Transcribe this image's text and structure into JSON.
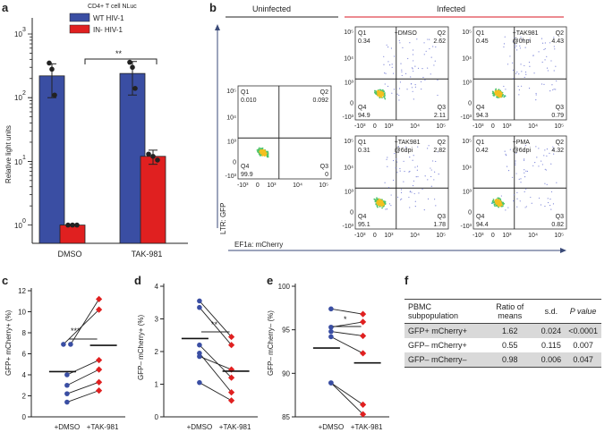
{
  "panels": {
    "a": "a",
    "b": "b",
    "c": "c",
    "d": "d",
    "e": "e",
    "f": "f"
  },
  "panel_a": {
    "title": "CD4+ T cell NLuc",
    "ylabel": "Relative light units",
    "significance": "**",
    "yticks": [
      "10",
      "10",
      "10",
      "10"
    ],
    "yexps": [
      "0",
      "1",
      "2",
      "3"
    ],
    "legend": [
      {
        "name": "WT HIV-1",
        "color": "#3a4ea3"
      },
      {
        "name": "IN- HIV-1",
        "color": "#e02020"
      }
    ]
  },
  "panel_b": {
    "header_left": "Uninfected",
    "header_right": "Infected",
    "header_right_color": "#e0454f",
    "ylabel": "LTR: GFP",
    "xlabel": "EF1a: mCherry",
    "tick_labels": {
      "x": [
        "-10³",
        "0",
        "10³",
        "10⁴",
        "10⁵"
      ],
      "y": [
        "-10³",
        "0",
        "10³",
        "10⁴",
        "10⁵"
      ]
    },
    "plots": [
      {
        "label": "",
        "q1": "0.010",
        "q2": "0.092",
        "q3": "0",
        "q4": "99.9"
      },
      {
        "label": "+DMSO",
        "q1": "0.34",
        "q2": "2.62",
        "q3": "2.11",
        "q4": "94.9"
      },
      {
        "label": "+TAK981\n@0hpi",
        "q1": "0.45",
        "q2": "4.43",
        "q3": "0.79",
        "q4": "94.3"
      },
      {
        "label": "+TAK981\n@6dpi",
        "q1": "0.31",
        "q2": "2.82",
        "q3": "1.78",
        "q4": "95.1"
      },
      {
        "label": "+PMA\n@6dpi",
        "q1": "0.42",
        "q2": "4.32",
        "q3": "0.82",
        "q4": "94.4"
      }
    ],
    "quadrant_names": [
      "Q1",
      "Q2",
      "Q3",
      "Q4"
    ]
  },
  "panel_c": {
    "ylabel": "GFP+ mCherry+ (%)",
    "significance": "***"
  },
  "panel_d": {
    "ylabel": "GFP– mCherry+ (%)",
    "significance": "**"
  },
  "panel_e": {
    "ylabel": "GFP– mCherry– (%)",
    "significance": "*"
  },
  "table": {
    "headers": [
      "PBMC subpopulation",
      "Ratio of means",
      "s.d.",
      "P value"
    ],
    "rows": [
      [
        "GFP+ mCherry+",
        "1.62",
        "0.024",
        "<0.0001"
      ],
      [
        "GFP– mCherry+",
        "0.55",
        "0.115",
        "0.007"
      ],
      [
        "GFP– mCherry–",
        "0.98",
        "0.006",
        "0.047"
      ]
    ]
  },
  "chart_data": [
    {
      "type": "bar",
      "panel": "a",
      "title": "CD4+ T cell NLuc",
      "categories": [
        "DMSO",
        "TAK-981"
      ],
      "series": [
        {
          "name": "WT HIV-1",
          "values": [
            220,
            240
          ],
          "sd": [
            120,
            130
          ],
          "points": [
            [
              350,
              280,
              110
            ],
            [
              360,
              300,
              140
            ]
          ]
        },
        {
          "name": "IN- HIV-1",
          "values": [
            1.0,
            12
          ],
          "sd": [
            0.02,
            3
          ],
          "points": [
            [
              1.0,
              1.0,
              1.0
            ],
            [
              13,
              12,
              10.5
            ]
          ]
        }
      ],
      "yscale": "log",
      "ylim": [
        0.5,
        1000
      ],
      "xlabel": "",
      "ylabel": "Relative light units"
    },
    {
      "type": "scatter",
      "panel": "c",
      "categories": [
        "+DMSO",
        "+TAK-981"
      ],
      "pairs": [
        [
          6.9,
          11.2
        ],
        [
          6.9,
          10.2
        ],
        [
          4.0,
          5.4
        ],
        [
          3.0,
          4.5
        ],
        [
          2.2,
          3.3
        ],
        [
          1.4,
          2.5
        ]
      ],
      "means": [
        4.3,
        6.8
      ],
      "ylim": [
        0,
        12
      ],
      "yticks": [
        0,
        2,
        4,
        6,
        8,
        10,
        12
      ],
      "ylabel": "GFP+ mCherry+ (%)"
    },
    {
      "type": "scatter",
      "panel": "d",
      "categories": [
        "+DMSO",
        "+TAK-981"
      ],
      "pairs": [
        [
          3.55,
          2.45
        ],
        [
          3.35,
          2.2
        ],
        [
          2.2,
          1.2
        ],
        [
          1.95,
          0.75
        ],
        [
          1.85,
          1.45
        ],
        [
          1.05,
          0.5
        ]
      ],
      "means": [
        2.4,
        1.4
      ],
      "ylim": [
        0,
        4
      ],
      "yticks": [
        0,
        1,
        2,
        3,
        4
      ],
      "ylabel": "GFP– mCherry+ (%)"
    },
    {
      "type": "scatter",
      "panel": "e",
      "categories": [
        "+DMSO",
        "+TAK-981"
      ],
      "pairs": [
        [
          97.4,
          96.8
        ],
        [
          95.3,
          95.9
        ],
        [
          94.8,
          94.3
        ],
        [
          94.2,
          92.3
        ],
        [
          88.9,
          86.4
        ],
        [
          88.9,
          85.3
        ]
      ],
      "means": [
        92.9,
        91.2
      ],
      "ylim": [
        85,
        100
      ],
      "yticks": [
        85,
        90,
        95,
        100
      ],
      "ylabel": "GFP– mCherry– (%)"
    }
  ]
}
